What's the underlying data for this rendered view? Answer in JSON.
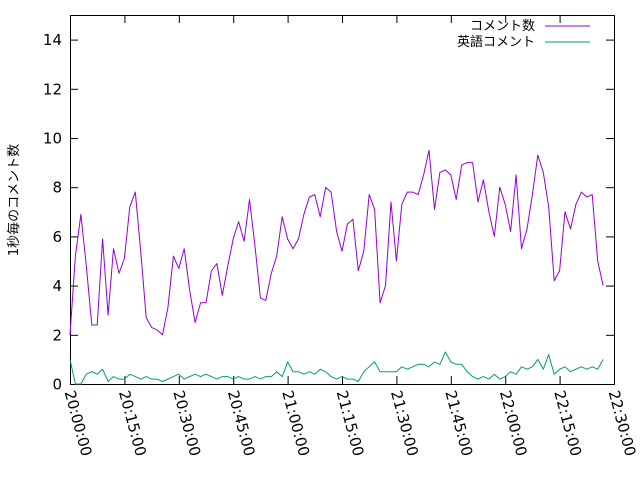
{
  "chart_data": {
    "type": "line",
    "ylabel": "1秒毎のコメント数",
    "xlabel": "",
    "ylim": [
      0,
      15
    ],
    "xlim": [
      "20:00:00",
      "22:30:00"
    ],
    "grid": false,
    "legend": "top-right",
    "yticks": [
      "0",
      "2",
      "4",
      "6",
      "8",
      "10",
      "12",
      "14"
    ],
    "xticks": [
      "20:00:00",
      "20:15:00",
      "20:30:00",
      "20:45:00",
      "21:00:00",
      "21:15:00",
      "21:30:00",
      "21:45:00",
      "22:00:00",
      "22:15:00",
      "22:30:00"
    ],
    "colors": {
      "series1": "#9400d3",
      "series2": "#009e73",
      "axis": "#000000"
    },
    "series": [
      {
        "name": "コメント数",
        "points": [
          [
            "20:00:00",
            2.0
          ],
          [
            "20:01:30",
            5.2
          ],
          [
            "20:03:00",
            6.9
          ],
          [
            "20:04:30",
            4.8
          ],
          [
            "20:06:00",
            2.4
          ],
          [
            "20:07:30",
            2.4
          ],
          [
            "20:09:00",
            5.9
          ],
          [
            "20:10:30",
            2.8
          ],
          [
            "20:12:00",
            5.5
          ],
          [
            "20:13:30",
            4.5
          ],
          [
            "20:15:00",
            5.1
          ],
          [
            "20:16:30",
            7.2
          ],
          [
            "20:18:00",
            7.8
          ],
          [
            "20:19:30",
            5.4
          ],
          [
            "20:21:00",
            2.7
          ],
          [
            "20:22:30",
            2.3
          ],
          [
            "20:24:00",
            2.2
          ],
          [
            "20:25:30",
            2.0
          ],
          [
            "20:27:00",
            3.1
          ],
          [
            "20:28:30",
            5.2
          ],
          [
            "20:30:00",
            4.7
          ],
          [
            "20:31:30",
            5.5
          ],
          [
            "20:33:00",
            3.8
          ],
          [
            "20:34:30",
            2.5
          ],
          [
            "20:36:00",
            3.3
          ],
          [
            "20:37:30",
            3.3
          ],
          [
            "20:39:00",
            4.6
          ],
          [
            "20:40:30",
            4.9
          ],
          [
            "20:42:00",
            3.6
          ],
          [
            "20:43:30",
            4.8
          ],
          [
            "20:45:00",
            5.9
          ],
          [
            "20:46:30",
            6.6
          ],
          [
            "20:48:00",
            5.8
          ],
          [
            "20:49:30",
            7.5
          ],
          [
            "20:51:00",
            5.6
          ],
          [
            "20:52:30",
            3.5
          ],
          [
            "20:54:00",
            3.4
          ],
          [
            "20:55:30",
            4.5
          ],
          [
            "20:57:00",
            5.2
          ],
          [
            "20:58:30",
            6.8
          ],
          [
            "21:00:00",
            5.9
          ],
          [
            "21:01:30",
            5.5
          ],
          [
            "21:03:00",
            5.9
          ],
          [
            "21:04:30",
            6.9
          ],
          [
            "21:06:00",
            7.6
          ],
          [
            "21:07:30",
            7.7
          ],
          [
            "21:09:00",
            6.8
          ],
          [
            "21:10:30",
            8.0
          ],
          [
            "21:12:00",
            7.8
          ],
          [
            "21:13:30",
            6.2
          ],
          [
            "21:15:00",
            5.4
          ],
          [
            "21:16:30",
            6.5
          ],
          [
            "21:18:00",
            6.7
          ],
          [
            "21:19:30",
            4.6
          ],
          [
            "21:21:00",
            5.4
          ],
          [
            "21:22:30",
            7.7
          ],
          [
            "21:24:00",
            7.1
          ],
          [
            "21:25:30",
            3.3
          ],
          [
            "21:27:00",
            4.0
          ],
          [
            "21:28:30",
            7.4
          ],
          [
            "21:30:00",
            5.0
          ],
          [
            "21:31:30",
            7.3
          ],
          [
            "21:33:00",
            7.8
          ],
          [
            "21:34:30",
            7.8
          ],
          [
            "21:36:00",
            7.7
          ],
          [
            "21:37:30",
            8.5
          ],
          [
            "21:39:00",
            9.5
          ],
          [
            "21:40:30",
            7.1
          ],
          [
            "21:42:00",
            8.6
          ],
          [
            "21:43:30",
            8.7
          ],
          [
            "21:45:00",
            8.5
          ],
          [
            "21:46:30",
            7.5
          ],
          [
            "21:48:00",
            8.9
          ],
          [
            "21:49:30",
            9.0
          ],
          [
            "21:51:00",
            9.0
          ],
          [
            "21:52:30",
            7.4
          ],
          [
            "21:54:00",
            8.3
          ],
          [
            "21:55:30",
            7.0
          ],
          [
            "21:57:00",
            6.0
          ],
          [
            "21:58:30",
            8.0
          ],
          [
            "22:00:00",
            7.3
          ],
          [
            "22:01:30",
            6.2
          ],
          [
            "22:03:00",
            8.5
          ],
          [
            "22:04:30",
            5.5
          ],
          [
            "22:06:00",
            6.3
          ],
          [
            "22:07:30",
            7.7
          ],
          [
            "22:09:00",
            9.3
          ],
          [
            "22:10:30",
            8.6
          ],
          [
            "22:12:00",
            7.2
          ],
          [
            "22:13:30",
            4.2
          ],
          [
            "22:15:00",
            4.6
          ],
          [
            "22:16:30",
            7.0
          ],
          [
            "22:18:00",
            6.3
          ],
          [
            "22:19:30",
            7.3
          ],
          [
            "22:21:00",
            7.8
          ],
          [
            "22:22:30",
            7.6
          ],
          [
            "22:24:00",
            7.7
          ],
          [
            "22:25:30",
            5.0
          ],
          [
            "22:27:00",
            4.0
          ]
        ]
      },
      {
        "name": "英語コメント",
        "points": [
          [
            "20:00:00",
            1.0
          ],
          [
            "20:01:30",
            0.0
          ],
          [
            "20:03:00",
            0.0
          ],
          [
            "20:04:30",
            0.4
          ],
          [
            "20:06:00",
            0.5
          ],
          [
            "20:07:30",
            0.4
          ],
          [
            "20:09:00",
            0.6
          ],
          [
            "20:10:30",
            0.1
          ],
          [
            "20:12:00",
            0.3
          ],
          [
            "20:13:30",
            0.2
          ],
          [
            "20:15:00",
            0.2
          ],
          [
            "20:16:30",
            0.4
          ],
          [
            "20:18:00",
            0.3
          ],
          [
            "20:19:30",
            0.2
          ],
          [
            "20:21:00",
            0.3
          ],
          [
            "20:22:30",
            0.2
          ],
          [
            "20:24:00",
            0.2
          ],
          [
            "20:25:30",
            0.1
          ],
          [
            "20:27:00",
            0.2
          ],
          [
            "20:28:30",
            0.3
          ],
          [
            "20:30:00",
            0.4
          ],
          [
            "20:31:30",
            0.2
          ],
          [
            "20:33:00",
            0.3
          ],
          [
            "20:34:30",
            0.4
          ],
          [
            "20:36:00",
            0.3
          ],
          [
            "20:37:30",
            0.4
          ],
          [
            "20:39:00",
            0.3
          ],
          [
            "20:40:30",
            0.2
          ],
          [
            "20:42:00",
            0.3
          ],
          [
            "20:43:30",
            0.3
          ],
          [
            "20:45:00",
            0.2
          ],
          [
            "20:46:30",
            0.3
          ],
          [
            "20:48:00",
            0.2
          ],
          [
            "20:49:30",
            0.2
          ],
          [
            "20:51:00",
            0.3
          ],
          [
            "20:52:30",
            0.2
          ],
          [
            "20:54:00",
            0.3
          ],
          [
            "20:55:30",
            0.3
          ],
          [
            "20:57:00",
            0.5
          ],
          [
            "20:58:30",
            0.3
          ],
          [
            "21:00:00",
            0.9
          ],
          [
            "21:01:30",
            0.5
          ],
          [
            "21:03:00",
            0.5
          ],
          [
            "21:04:30",
            0.4
          ],
          [
            "21:06:00",
            0.5
          ],
          [
            "21:07:30",
            0.4
          ],
          [
            "21:09:00",
            0.6
          ],
          [
            "21:10:30",
            0.5
          ],
          [
            "21:12:00",
            0.3
          ],
          [
            "21:13:30",
            0.2
          ],
          [
            "21:15:00",
            0.3
          ],
          [
            "21:16:30",
            0.2
          ],
          [
            "21:18:00",
            0.2
          ],
          [
            "21:19:30",
            0.1
          ],
          [
            "21:21:00",
            0.5
          ],
          [
            "21:22:30",
            0.7
          ],
          [
            "21:24:00",
            0.9
          ],
          [
            "21:25:30",
            0.5
          ],
          [
            "21:27:00",
            0.5
          ],
          [
            "21:28:30",
            0.5
          ],
          [
            "21:30:00",
            0.5
          ],
          [
            "21:31:30",
            0.7
          ],
          [
            "21:33:00",
            0.6
          ],
          [
            "21:34:30",
            0.7
          ],
          [
            "21:36:00",
            0.8
          ],
          [
            "21:37:30",
            0.8
          ],
          [
            "21:39:00",
            0.7
          ],
          [
            "21:40:30",
            0.9
          ],
          [
            "21:42:00",
            0.8
          ],
          [
            "21:43:30",
            1.3
          ],
          [
            "21:45:00",
            0.9
          ],
          [
            "21:46:30",
            0.8
          ],
          [
            "21:48:00",
            0.8
          ],
          [
            "21:49:30",
            0.5
          ],
          [
            "21:51:00",
            0.3
          ],
          [
            "21:52:30",
            0.2
          ],
          [
            "21:54:00",
            0.3
          ],
          [
            "21:55:30",
            0.2
          ],
          [
            "21:57:00",
            0.4
          ],
          [
            "21:58:30",
            0.2
          ],
          [
            "22:00:00",
            0.3
          ],
          [
            "22:01:30",
            0.5
          ],
          [
            "22:03:00",
            0.4
          ],
          [
            "22:04:30",
            0.7
          ],
          [
            "22:06:00",
            0.6
          ],
          [
            "22:07:30",
            0.7
          ],
          [
            "22:09:00",
            1.0
          ],
          [
            "22:10:30",
            0.6
          ],
          [
            "22:12:00",
            1.2
          ],
          [
            "22:13:30",
            0.4
          ],
          [
            "22:15:00",
            0.6
          ],
          [
            "22:16:30",
            0.7
          ],
          [
            "22:18:00",
            0.5
          ],
          [
            "22:19:30",
            0.6
          ],
          [
            "22:21:00",
            0.7
          ],
          [
            "22:22:30",
            0.6
          ],
          [
            "22:24:00",
            0.7
          ],
          [
            "22:25:30",
            0.6
          ],
          [
            "22:27:00",
            1.0
          ]
        ]
      }
    ]
  }
}
